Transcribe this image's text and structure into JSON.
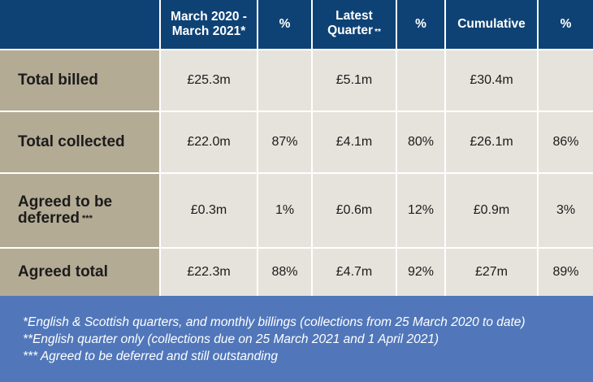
{
  "header": {
    "col1": {
      "line1": "March 2020 -",
      "line2": "March 2021*"
    },
    "col2": "%",
    "col3": {
      "line1": "Latest",
      "line2": "Quarter",
      "sup": "**"
    },
    "col4": "%",
    "col5": "Cumulative",
    "col6": "%"
  },
  "rows": [
    {
      "label": "Total billed",
      "values": [
        "£25.3m",
        "",
        "£5.1m",
        "",
        "£30.4m",
        ""
      ]
    },
    {
      "label": "Total collected",
      "values": [
        "£22.0m",
        "87%",
        "£4.1m",
        "80%",
        "£26.1m",
        "86%"
      ]
    },
    {
      "label_line1": "Agreed to be",
      "label_line2": "deferred",
      "label_sup": "***",
      "values": [
        "£0.3m",
        "1%",
        "£0.6m",
        "12%",
        "£0.9m",
        "3%"
      ]
    },
    {
      "label": "Agreed total",
      "values": [
        "£22.3m",
        "88%",
        "£4.7m",
        "92%",
        "£27m",
        "89%"
      ]
    }
  ],
  "footnotes": [
    "*English & Scottish quarters, and monthly billings (collections from 25 March 2020 to date)",
    "**English quarter only (collections due on 25 March 2021 and 1 April 2021)",
    "*** Agreed to be deferred and still outstanding"
  ],
  "colors": {
    "header_bg": "#0e4275",
    "label_bg": "#b4ab95",
    "cell_bg": "#e6e3dc",
    "footer_bg": "#5177ba"
  }
}
